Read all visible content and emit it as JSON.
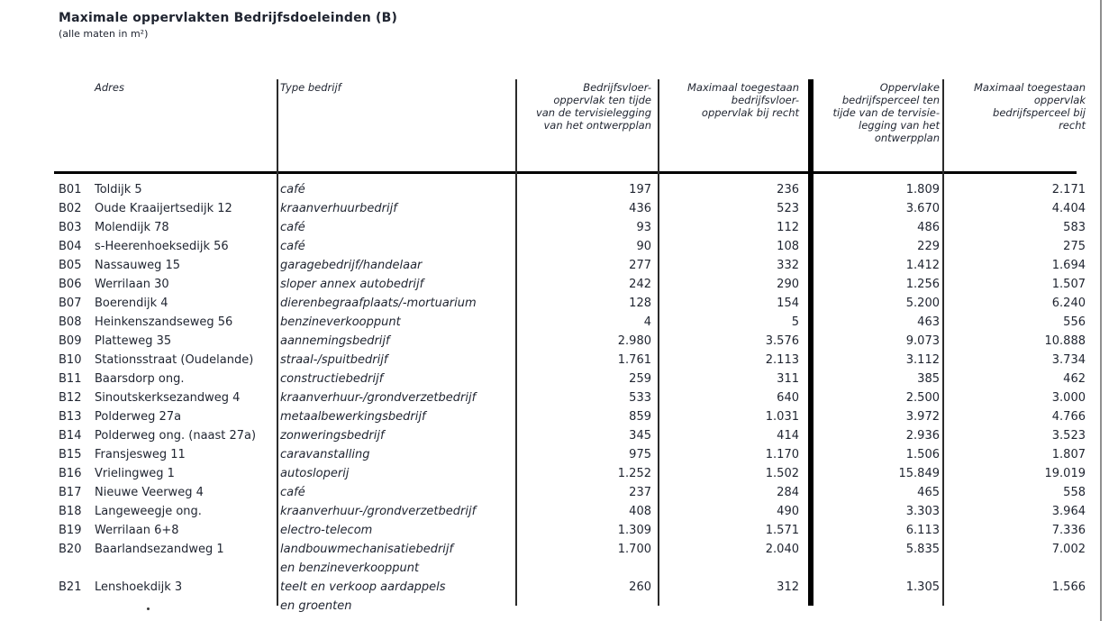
{
  "page": {
    "title": "Maximale oppervlakten Bedrijfsdoeleinden (B)",
    "subtitle": "(alle maten in m²)"
  },
  "colors": {
    "background": "#ffffff",
    "text": "#1f2430",
    "line": "#2b2b2b",
    "thick_line": "#000000",
    "page_border": "#8f8f8f"
  },
  "table": {
    "headers": {
      "adres": "Adres",
      "type": "Type bedrijf",
      "vloer_tervisie": "Bedrijfsvloer-\noppervlak ten tijde\nvan de tervisielegging\nvan het ontwerpplan",
      "vloer_recht": "Maximaal toegestaan\nbedrijfsvloer-\noppervlak bij recht",
      "perceel_tervisie": "Oppervlake\nbedrijfsperceel ten\ntijde van de tervisie-\nlegging van het\nontwerpplan",
      "perceel_recht": "Maximaal toegestaan\noppervlak\nbedrijfsperceel bij\nrecht"
    },
    "rows": [
      {
        "code": "B01",
        "adres": "Toldijk 5",
        "type": [
          "café"
        ],
        "vloer_tervisie": "197",
        "vloer_recht": "236",
        "perceel_tervisie": "1.809",
        "perceel_recht": "2.171"
      },
      {
        "code": "B02",
        "adres": "Oude Kraaijertsedijk 12",
        "type": [
          "kraanverhuurbedrijf"
        ],
        "vloer_tervisie": "436",
        "vloer_recht": "523",
        "perceel_tervisie": "3.670",
        "perceel_recht": "4.404"
      },
      {
        "code": "B03",
        "adres": "Molendijk 78",
        "type": [
          "café"
        ],
        "vloer_tervisie": "93",
        "vloer_recht": "112",
        "perceel_tervisie": "486",
        "perceel_recht": "583"
      },
      {
        "code": "B04",
        "adres": "s-Heerenhoeksedijk 56",
        "type": [
          "café"
        ],
        "vloer_tervisie": "90",
        "vloer_recht": "108",
        "perceel_tervisie": "229",
        "perceel_recht": "275"
      },
      {
        "code": "B05",
        "adres": "Nassauweg 15",
        "type": [
          "garagebedrijf/handelaar"
        ],
        "vloer_tervisie": "277",
        "vloer_recht": "332",
        "perceel_tervisie": "1.412",
        "perceel_recht": "1.694"
      },
      {
        "code": "B06",
        "adres": "Werrilaan 30",
        "type": [
          "sloper annex autobedrijf"
        ],
        "vloer_tervisie": "242",
        "vloer_recht": "290",
        "perceel_tervisie": "1.256",
        "perceel_recht": "1.507"
      },
      {
        "code": "B07",
        "adres": "Boerendijk 4",
        "type": [
          "dierenbegraafplaats/-mortuarium"
        ],
        "vloer_tervisie": "128",
        "vloer_recht": "154",
        "perceel_tervisie": "5.200",
        "perceel_recht": "6.240"
      },
      {
        "code": "B08",
        "adres": "Heinkenszandseweg 56",
        "type": [
          "benzineverkooppunt"
        ],
        "vloer_tervisie": "4",
        "vloer_recht": "5",
        "perceel_tervisie": "463",
        "perceel_recht": "556"
      },
      {
        "code": "B09",
        "adres": "Platteweg 35",
        "type": [
          "aannemingsbedrijf"
        ],
        "vloer_tervisie": "2.980",
        "vloer_recht": "3.576",
        "perceel_tervisie": "9.073",
        "perceel_recht": "10.888"
      },
      {
        "code": "B10",
        "adres": "Stationsstraat (Oudelande)",
        "type": [
          "straal-/spuitbedrijf"
        ],
        "vloer_tervisie": "1.761",
        "vloer_recht": "2.113",
        "perceel_tervisie": "3.112",
        "perceel_recht": "3.734"
      },
      {
        "code": "B11",
        "adres": "Baarsdorp ong.",
        "type": [
          "constructiebedrijf"
        ],
        "vloer_tervisie": "259",
        "vloer_recht": "311",
        "perceel_tervisie": "385",
        "perceel_recht": "462"
      },
      {
        "code": "B12",
        "adres": "Sinoutskerksezandweg 4",
        "type": [
          "kraanverhuur-/grondverzetbedrijf"
        ],
        "vloer_tervisie": "533",
        "vloer_recht": "640",
        "perceel_tervisie": "2.500",
        "perceel_recht": "3.000"
      },
      {
        "code": "B13",
        "adres": "Polderweg 27a",
        "type": [
          "metaalbewerkingsbedrijf"
        ],
        "vloer_tervisie": "859",
        "vloer_recht": "1.031",
        "perceel_tervisie": "3.972",
        "perceel_recht": "4.766"
      },
      {
        "code": "B14",
        "adres": "Polderweg ong. (naast 27a)",
        "type": [
          "zonweringsbedrijf"
        ],
        "vloer_tervisie": "345",
        "vloer_recht": "414",
        "perceel_tervisie": "2.936",
        "perceel_recht": "3.523"
      },
      {
        "code": "B15",
        "adres": "Fransjesweg 11",
        "type": [
          "caravanstalling"
        ],
        "vloer_tervisie": "975",
        "vloer_recht": "1.170",
        "perceel_tervisie": "1.506",
        "perceel_recht": "1.807"
      },
      {
        "code": "B16",
        "adres": "Vrielingweg 1",
        "type": [
          "autosloperij"
        ],
        "vloer_tervisie": "1.252",
        "vloer_recht": "1.502",
        "perceel_tervisie": "15.849",
        "perceel_recht": "19.019"
      },
      {
        "code": "B17",
        "adres": "Nieuwe Veerweg 4",
        "type": [
          "café"
        ],
        "vloer_tervisie": "237",
        "vloer_recht": "284",
        "perceel_tervisie": "465",
        "perceel_recht": "558"
      },
      {
        "code": "B18",
        "adres": "Langeweegje ong.",
        "type": [
          "kraanverhuur-/grondverzetbedrijf"
        ],
        "vloer_tervisie": "408",
        "vloer_recht": "490",
        "perceel_tervisie": "3.303",
        "perceel_recht": "3.964"
      },
      {
        "code": "B19",
        "adres": "Werrilaan 6+8",
        "type": [
          "electro-telecom"
        ],
        "vloer_tervisie": "1.309",
        "vloer_recht": "1.571",
        "perceel_tervisie": "6.113",
        "perceel_recht": "7.336"
      },
      {
        "code": "B20",
        "adres": "Baarlandsezandweg 1",
        "type": [
          "landbouwmechanisatiebedrijf",
          "en benzineverkooppunt"
        ],
        "vloer_tervisie": "1.700",
        "vloer_recht": "2.040",
        "perceel_tervisie": "5.835",
        "perceel_recht": "7.002"
      },
      {
        "code": "B21",
        "adres": "Lenshoekdijk 3",
        "type": [
          "teelt en verkoop aardappels",
          "en groenten"
        ],
        "vloer_tervisie": "260",
        "vloer_recht": "312",
        "perceel_tervisie": "1.305",
        "perceel_recht": "1.566"
      }
    ]
  }
}
